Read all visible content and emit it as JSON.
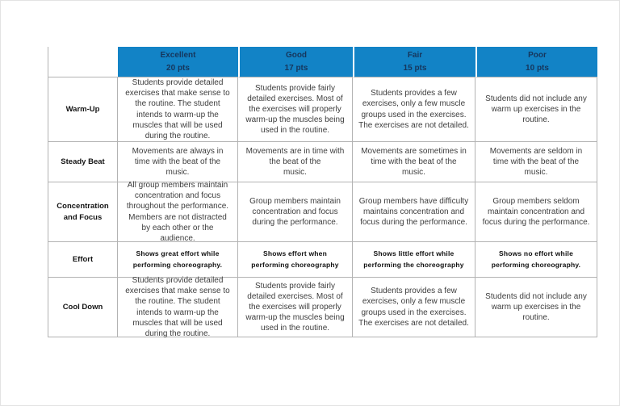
{
  "colors": {
    "header_bg": "#1283C6",
    "header_text": "#16365C",
    "grid_border": "#b3b3b3",
    "body_text": "#3d3d3d"
  },
  "rubric": {
    "header": {
      "columns": [
        {
          "label": "Excellent",
          "points": "20 pts"
        },
        {
          "label": "Good",
          "points": "17 pts"
        },
        {
          "label": "Fair",
          "points": "15 pts"
        },
        {
          "label": "Poor",
          "points": "10 pts"
        }
      ]
    },
    "rows": [
      {
        "criterion": "Warm-Up",
        "cells": [
          "Students provide detailed exercises that make sense to the routine. The student intends to warm-up the muscles that will be used during the routine.",
          "Students provide fairly detailed exercises. Most of the exercises will properly warm-up the muscles being used in the routine.",
          "Students provides a few exercises, only a few muscle groups used in the exercises. The exercises are not detailed.",
          "Students did not include any warm up exercises in the routine."
        ]
      },
      {
        "criterion": "Steady Beat",
        "cells": [
          "Movements are always in time with the beat of the music.",
          "Movements are in time with\nthe beat of the\nmusic.",
          "Movements are sometimes in time with the beat of the music.",
          "Movements are seldom in time with the beat of the music."
        ]
      },
      {
        "criterion": "Concentration and Focus",
        "cells": [
          "All group members maintain concentration and focus throughout the performance. Members are not distracted by each other or the audience.",
          "Group members maintain concentration and focus during the performance.",
          "Group members have difficulty maintains concentration and focus during the performance.",
          "Group members seldom maintain concentration and focus during the performance."
        ]
      },
      {
        "criterion": "Effort",
        "cells": [
          "Shows great effort while performing choreography.",
          "Shows effort when performing choreography",
          "Shows little effort while performing the choreography",
          "Shows no effort while performing choreography."
        ]
      },
      {
        "criterion": "Cool Down",
        "cells": [
          "Students provide detailed exercises that make sense to the routine. The student intends to warm-up the muscles that will be used during the routine.",
          "Students provide fairly detailed exercises. Most of the exercises will properly warm-up the muscles being used in the routine.",
          "Students provides a few exercises, only a few muscle groups used in the exercises. The exercises are not detailed.",
          "Students did not include any warm up exercises in the routine."
        ]
      }
    ]
  }
}
